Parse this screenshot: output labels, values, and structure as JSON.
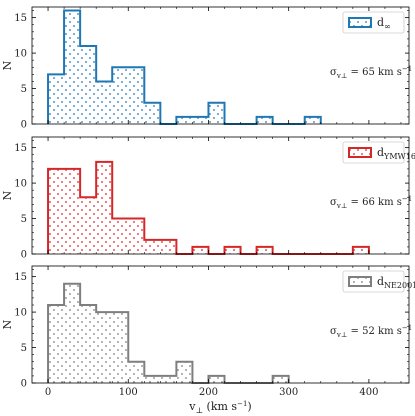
{
  "chart_data": [
    {
      "type": "bar",
      "histogram": true,
      "bin_width": 20,
      "bin_edges_start": 0,
      "x_values": [
        10,
        30,
        50,
        70,
        90,
        110,
        130,
        150,
        170,
        190,
        210,
        230,
        250,
        270,
        290,
        310,
        330
      ],
      "values": [
        7,
        16,
        11,
        6,
        8,
        8,
        3,
        0,
        1,
        1,
        3,
        0,
        0,
        1,
        0,
        0,
        1
      ],
      "color": "#1f77b4",
      "legend": {
        "main": "d",
        "sub": "∞",
        "position": "top-right"
      },
      "annotation": {
        "main": "σ",
        "sub": "v⊥",
        "rest": " = 65 km s",
        "sup": "−1"
      },
      "ylabel": "N",
      "ylim": [
        0,
        16.5
      ],
      "xlim": [
        -20,
        450
      ],
      "yticks": [
        "0",
        "5",
        "10",
        "15"
      ],
      "show_x_tick_labels": false
    },
    {
      "type": "bar",
      "histogram": true,
      "bin_width": 20,
      "bin_edges_start": 0,
      "x_values": [
        10,
        30,
        50,
        70,
        90,
        110,
        130,
        150,
        170,
        190,
        210,
        230,
        250,
        270,
        290,
        310,
        330,
        350,
        370,
        390
      ],
      "values": [
        12,
        12,
        8,
        13,
        5,
        5,
        2,
        2,
        0,
        1,
        0,
        1,
        0,
        1,
        0,
        0,
        0,
        0,
        0,
        1
      ],
      "color": "#d62728",
      "legend": {
        "main": "d",
        "sub": "YMW16",
        "position": "top-right"
      },
      "annotation": {
        "main": "σ",
        "sub": "v⊥",
        "rest": " = 66 km s",
        "sup": "−1"
      },
      "ylabel": "N",
      "ylim": [
        0,
        16.5
      ],
      "xlim": [
        -20,
        450
      ],
      "yticks": [
        "0",
        "5",
        "10",
        "15"
      ],
      "show_x_tick_labels": false
    },
    {
      "type": "bar",
      "histogram": true,
      "bin_width": 20,
      "bin_edges_start": 0,
      "x_values": [
        10,
        30,
        50,
        70,
        90,
        110,
        130,
        150,
        170,
        190,
        210,
        230,
        250,
        270,
        290
      ],
      "values": [
        11,
        14,
        11,
        10,
        10,
        3,
        1,
        1,
        3,
        0,
        1,
        0,
        0,
        0,
        1
      ],
      "color": "#7f7f7f",
      "legend": {
        "main": "d",
        "sub": "NE2001",
        "position": "top-right"
      },
      "annotation": {
        "main": "σ",
        "sub": "v⊥",
        "rest": " = 52 km s",
        "sup": "−1"
      },
      "ylabel": "N",
      "ylim": [
        0,
        16.5
      ],
      "xlim": [
        -20,
        450
      ],
      "yticks": [
        "0",
        "5",
        "10",
        "15"
      ],
      "xticks": [
        "0",
        "100",
        "200",
        "300",
        "400"
      ],
      "xlabel": {
        "main": "v",
        "sub": "⊥",
        "rest": " (km s",
        "sup": "−1",
        "close": ")"
      },
      "show_x_tick_labels": true
    }
  ]
}
